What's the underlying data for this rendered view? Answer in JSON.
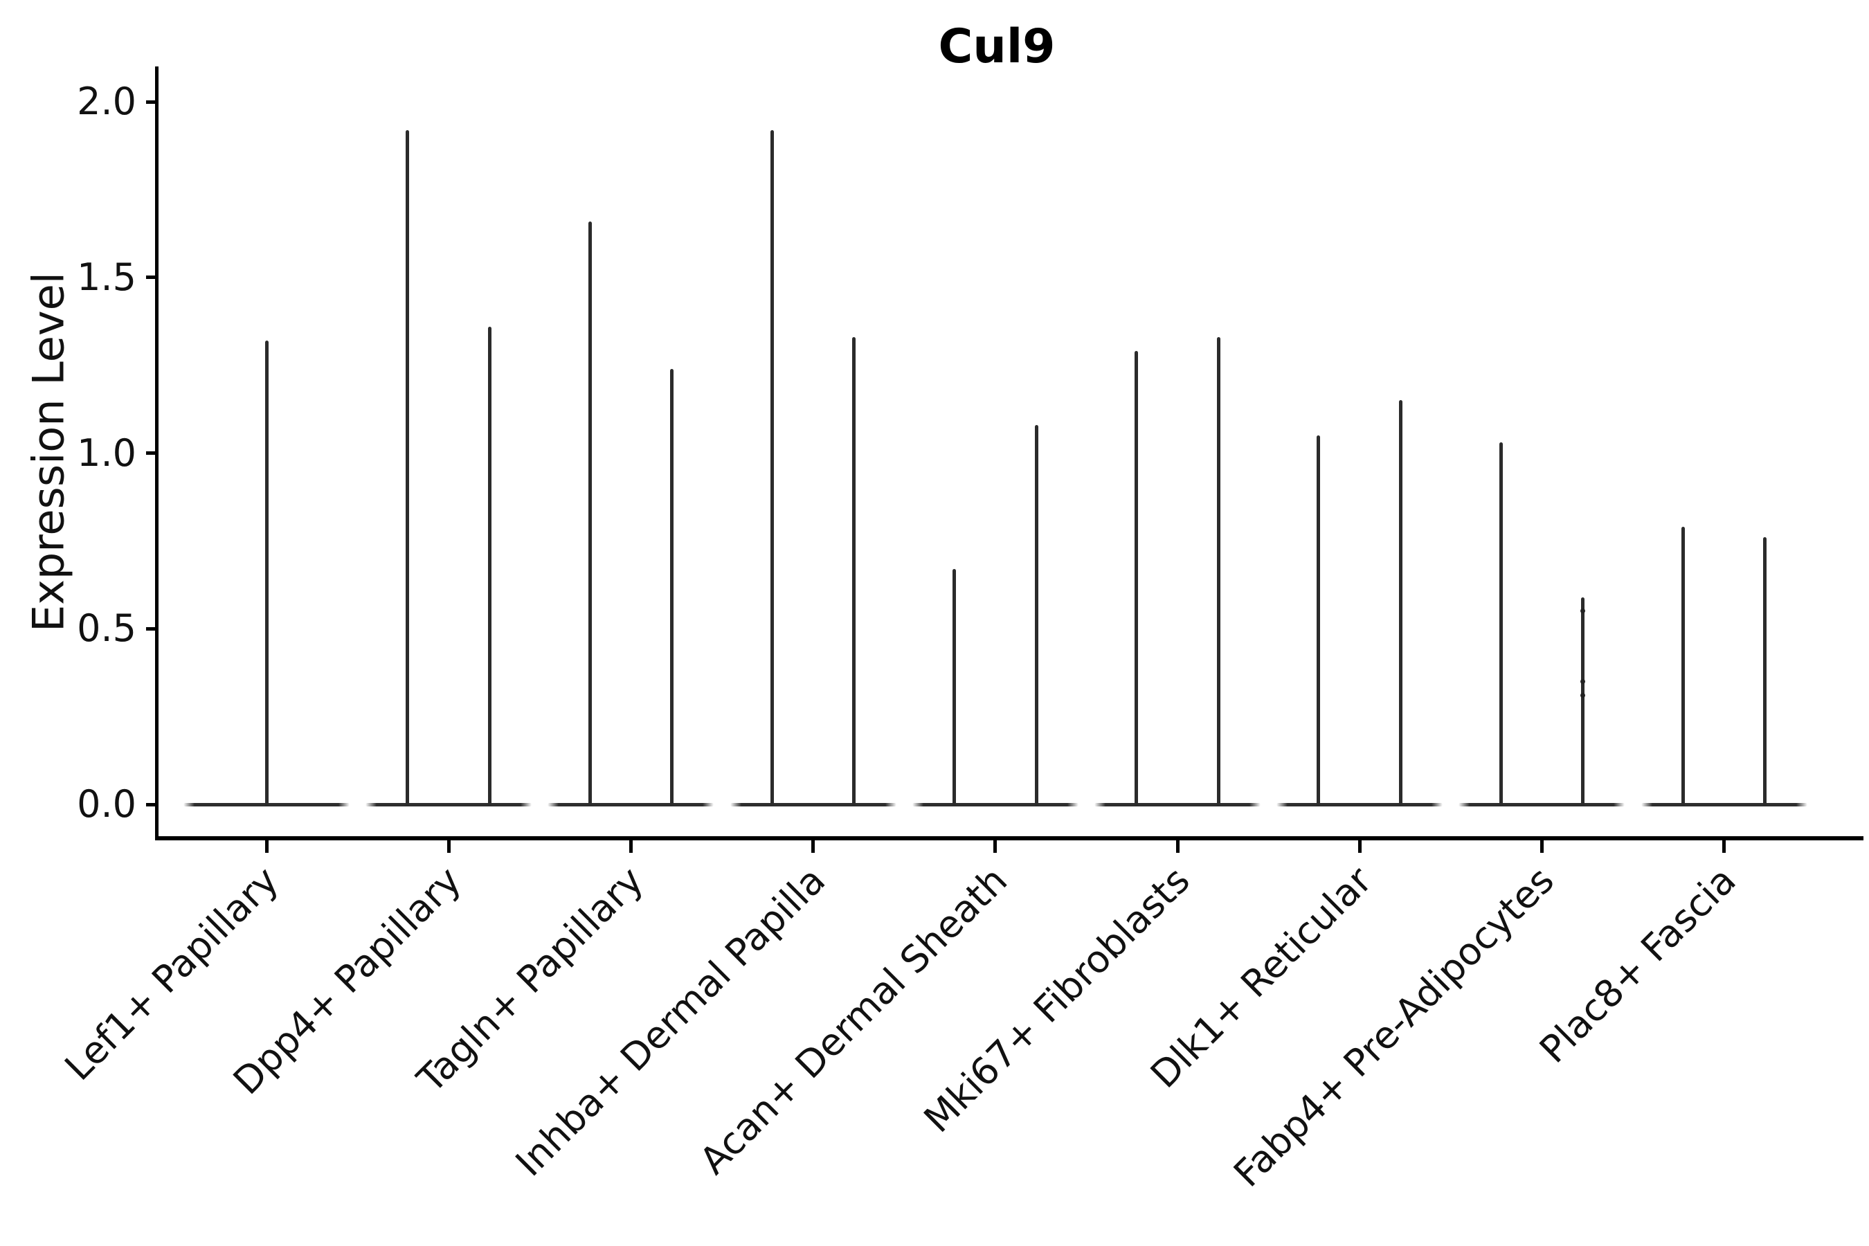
{
  "chart_data": {
    "type": "violin",
    "title": "Cul9",
    "xlabel": "",
    "ylabel": "Expression Level",
    "ylim": [
      0.0,
      2.0
    ],
    "yticks": [
      0.0,
      0.5,
      1.0,
      1.5,
      2.0
    ],
    "ytick_labels": [
      "0.0",
      "0.5",
      "1.0",
      "1.5",
      "2.0"
    ],
    "grid": false,
    "legend_position": "none",
    "stroke_color": "#2b2b2b",
    "categories": [
      {
        "label": "Lef1+ Papillary",
        "violins": [
          {
            "side": "center",
            "max": 1.32
          }
        ]
      },
      {
        "label": "Dpp4+ Papillary",
        "violins": [
          {
            "side": "left",
            "max": 1.92
          },
          {
            "side": "right",
            "max": 1.36
          }
        ]
      },
      {
        "label": "Tagln+ Papillary",
        "violins": [
          {
            "side": "left",
            "max": 1.66
          },
          {
            "side": "right",
            "max": 1.24
          }
        ]
      },
      {
        "label": "Inhba+ Dermal Papilla",
        "violins": [
          {
            "side": "left",
            "max": 1.92
          },
          {
            "side": "right",
            "max": 1.33
          }
        ]
      },
      {
        "label": "Acan+ Dermal Sheath",
        "violins": [
          {
            "side": "left",
            "max": 0.67
          },
          {
            "side": "right",
            "max": 1.08
          }
        ]
      },
      {
        "label": "Mki67+ Fibroblasts",
        "violins": [
          {
            "side": "left",
            "max": 1.29
          },
          {
            "side": "right",
            "max": 1.33
          }
        ]
      },
      {
        "label": "Dlk1+ Reticular",
        "violins": [
          {
            "side": "left",
            "max": 1.05
          },
          {
            "side": "right",
            "max": 1.15
          }
        ]
      },
      {
        "label": "Fabp4+ Pre-Adipocytes",
        "violins": [
          {
            "side": "left",
            "max": 1.03
          },
          {
            "side": "right",
            "max": 0.59,
            "points": [
              0.55,
              0.35,
              0.31
            ]
          }
        ]
      },
      {
        "label": "Plac8+ Fascia",
        "violins": [
          {
            "side": "left",
            "max": 0.79
          },
          {
            "side": "right",
            "max": 0.76
          }
        ]
      }
    ]
  }
}
